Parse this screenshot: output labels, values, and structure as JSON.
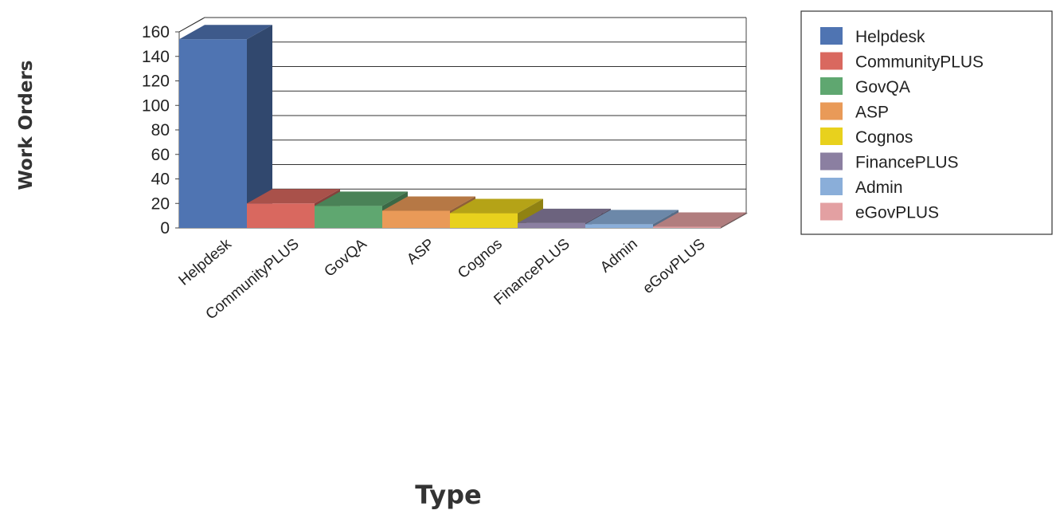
{
  "chart_data": {
    "type": "bar",
    "categories": [
      "Helpdesk",
      "CommunityPLUS",
      "GovQA",
      "ASP",
      "Cognos",
      "FinancePLUS",
      "Admin",
      "eGovPLUS"
    ],
    "values": [
      154,
      20,
      18,
      14,
      12,
      4,
      3,
      1
    ],
    "colors": [
      "#4f74b2",
      "#d9685f",
      "#5fa770",
      "#e99a58",
      "#e8d11d",
      "#8b7fa1",
      "#8aaed9",
      "#e3a0a2"
    ],
    "xlabel": "Type",
    "ylabel": "Work Orders",
    "ylim": [
      0,
      160
    ],
    "yticks": [
      0,
      20,
      40,
      60,
      80,
      100,
      120,
      140,
      160
    ],
    "grid": true,
    "legend": {
      "position": "right",
      "entries": [
        "Helpdesk",
        "CommunityPLUS",
        "GovQA",
        "ASP",
        "Cognos",
        "FinancePLUS",
        "Admin",
        "eGovPLUS"
      ]
    }
  }
}
